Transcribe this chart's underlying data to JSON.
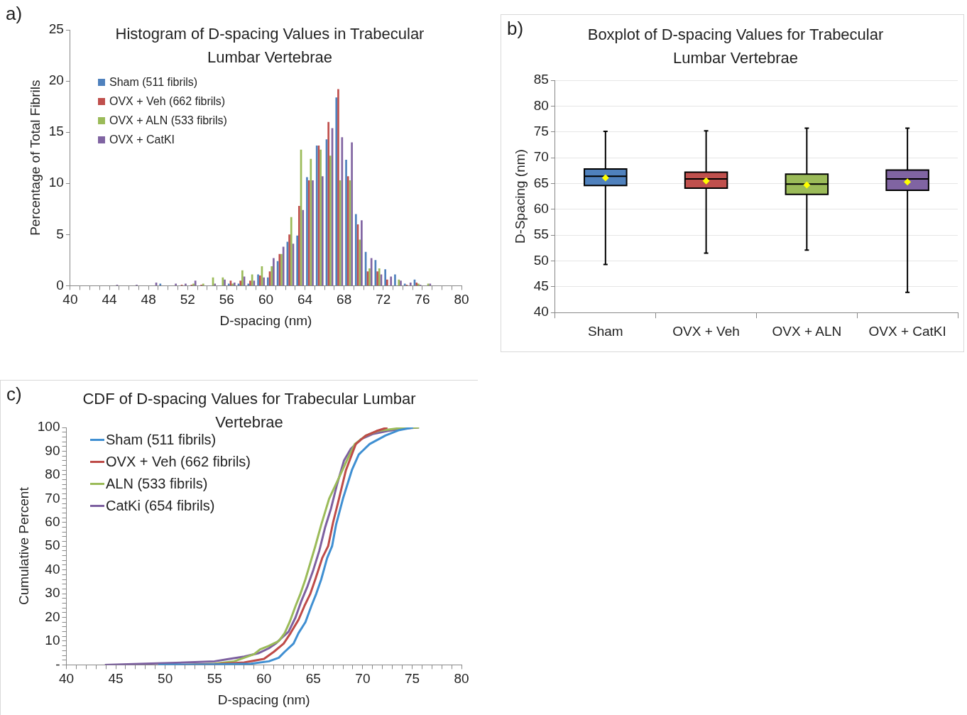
{
  "chart_data": [
    {
      "type": "histogram",
      "title": "Histogram of D-spacing Values in Trabecular Lumbar Vertebrae",
      "xlabel": "D-spacing (nm)",
      "ylabel": "Percentage of Total Fibrils",
      "annotations": [
        "a)"
      ],
      "bins": [
        40,
        41,
        42,
        43,
        44,
        45,
        46,
        47,
        48,
        49,
        50,
        51,
        52,
        53,
        54,
        55,
        56,
        57,
        58,
        59,
        60,
        61,
        62,
        63,
        64,
        65,
        66,
        67,
        68,
        69,
        70,
        71,
        72,
        73,
        74,
        75,
        76,
        77,
        78,
        79,
        80
      ],
      "series": [
        {
          "name": "Sham (511 fibrils)",
          "color": "#4f81bd",
          "values": [
            0,
            0,
            0,
            0,
            0,
            0,
            0,
            0,
            0,
            0.2,
            0,
            0,
            0,
            0,
            0,
            0,
            0.2,
            0.2,
            0.2,
            1.1,
            0.8,
            2.4,
            4.3,
            4.9,
            10.6,
            13.7,
            14.3,
            18.4,
            12.3,
            7.0,
            3.3,
            2.5,
            1.6,
            1.1,
            0.2,
            0.6,
            0,
            0,
            0,
            0
          ]
        },
        {
          "name": "OVX + Veh (662 fibrils)",
          "color": "#c0504d",
          "values": [
            0,
            0,
            0,
            0,
            0,
            0,
            0,
            0,
            0,
            0,
            0,
            0.1,
            0.1,
            0.1,
            0,
            0,
            0.5,
            0.5,
            0.5,
            1.0,
            1.4,
            3.1,
            5.0,
            7.8,
            10.3,
            13.7,
            16.0,
            19.2,
            10.7,
            6.0,
            1.4,
            1.4,
            0.6,
            0,
            0.1,
            0.3,
            0,
            0,
            0,
            0
          ]
        },
        {
          "name": "OVX + ALN (533 fibrils)",
          "color": "#9bbb59",
          "values": [
            0,
            0,
            0,
            0,
            0,
            0,
            0,
            0,
            0,
            0,
            0,
            0,
            0.2,
            0.2,
            0.8,
            0.8,
            0.2,
            1.5,
            1.1,
            1.9,
            1.9,
            3.1,
            6.7,
            13.3,
            12.4,
            13.3,
            12.7,
            10.3,
            10.3,
            4.5,
            1.7,
            1.7,
            0,
            0.6,
            0,
            0.2,
            0.2,
            0,
            0,
            0
          ]
        },
        {
          "name": "OVX + CatKI",
          "color": "#8064a2",
          "values": [
            0,
            0,
            0,
            0,
            0.1,
            0,
            0.1,
            0,
            0.3,
            0,
            0.2,
            0.2,
            0.5,
            0,
            0.2,
            0.6,
            0.3,
            0.9,
            0.5,
            0.8,
            2.7,
            3.8,
            4.1,
            7.4,
            10.3,
            10.7,
            15.4,
            14.5,
            14.0,
            6.4,
            2.7,
            1.1,
            0.9,
            0.5,
            0.3,
            0.1,
            0.2,
            0,
            0,
            0
          ]
        }
      ],
      "xlim": [
        40,
        80
      ],
      "xticks": [
        40,
        {
          "value": 41,
          "label": null
        },
        {
          "value": 42,
          "label": null
        },
        {
          "value": 43,
          "label": null
        },
        44,
        {
          "value": 45,
          "label": null
        },
        {
          "value": 46,
          "label": null
        },
        {
          "value": 47,
          "label": null
        },
        48,
        {
          "value": 49,
          "label": null
        },
        {
          "value": 50,
          "label": null
        },
        {
          "value": 51,
          "label": null
        },
        52,
        {
          "value": 53,
          "label": null
        },
        {
          "value": 54,
          "label": null
        },
        {
          "value": 55,
          "label": null
        },
        56,
        {
          "value": 57,
          "label": null
        },
        {
          "value": 58,
          "label": null
        },
        {
          "value": 59,
          "label": null
        },
        60,
        {
          "value": 61,
          "label": null
        },
        {
          "value": 62,
          "label": null
        },
        {
          "value": 63,
          "label": null
        },
        64,
        {
          "value": 65,
          "label": null
        },
        {
          "value": 66,
          "label": null
        },
        {
          "value": 67,
          "label": null
        },
        68,
        {
          "value": 69,
          "label": null
        },
        {
          "value": 70,
          "label": null
        },
        {
          "value": 71,
          "label": null
        },
        72,
        {
          "value": 73,
          "label": null
        },
        {
          "value": 74,
          "label": null
        },
        {
          "value": 75,
          "label": null
        },
        76,
        {
          "value": 77,
          "label": null
        },
        {
          "value": 78,
          "label": null
        },
        {
          "value": 79,
          "label": null
        },
        80
      ],
      "ylim": [
        0,
        25
      ],
      "yticks": [
        0,
        5,
        10,
        15,
        20,
        25
      ],
      "grid": false,
      "legend": "top left"
    },
    {
      "type": "box",
      "title": "Boxplot of D-spacing Values for Trabecular Lumbar Vertebrae",
      "ylabel": "D-Spacing (nm)",
      "annotations": [
        "b)"
      ],
      "categories": [
        "Sham",
        "OVX + Veh",
        "OVX + ALN",
        "OVX + CatKI"
      ],
      "colors": [
        "#4f81bd",
        "#c0504d",
        "#9bbb59",
        "#8064a2"
      ],
      "boxes": [
        {
          "low": 49.3,
          "q1": 64.6,
          "median": 66.4,
          "q3": 67.8,
          "high": 75.1,
          "mean": 66.1
        },
        {
          "low": 51.5,
          "q1": 64.1,
          "median": 65.9,
          "q3": 67.2,
          "high": 75.2,
          "mean": 65.5
        },
        {
          "low": 52.1,
          "q1": 62.9,
          "median": 64.9,
          "q3": 66.8,
          "high": 75.7,
          "mean": 64.7
        },
        {
          "low": 43.9,
          "q1": 63.7,
          "median": 65.9,
          "q3": 67.6,
          "high": 75.7,
          "mean": 65.3
        }
      ],
      "ylim": [
        40,
        85
      ],
      "yticks": [
        40,
        45,
        50,
        55,
        60,
        65,
        70,
        75,
        80,
        85
      ],
      "grid": "y"
    },
    {
      "type": "line",
      "title": "CDF of D-spacing Values for Trabecular Lumbar Vertebrae",
      "xlabel": "D-spacing (nm)",
      "ylabel": "Cumulative Percent",
      "annotations": [
        "c)"
      ],
      "series": [
        {
          "name": "Sham (511 fibrils)",
          "color": "#3f8fd2",
          "x": [
            49.3,
            55,
            58.7,
            60.5,
            61.5,
            62.1,
            63,
            63.5,
            64.2,
            64.8,
            65.3,
            65.8,
            66.4,
            66.9,
            67.3,
            68,
            68.9,
            69.6,
            70.7,
            72.3,
            73.7,
            75.1
          ],
          "values": [
            0,
            0.2,
            0.5,
            1.5,
            3,
            5.5,
            9,
            13.4,
            18,
            24.8,
            30,
            36,
            45,
            50,
            59,
            70,
            82,
            88.6,
            93,
            96.6,
            98.9,
            100
          ]
        },
        {
          "name": "OVX + Veh (662 fibrils)",
          "color": "#be4b48",
          "x": [
            51.5,
            55,
            58,
            60,
            61,
            62,
            62.7,
            63.5,
            64.1,
            64.7,
            65.2,
            65.9,
            66.5,
            67,
            67.6,
            68.3,
            69.3,
            70.3,
            71.4,
            72.5
          ],
          "values": [
            0,
            0.3,
            1,
            2.5,
            5.5,
            9,
            13.4,
            19,
            24.8,
            30,
            36,
            45,
            50,
            60,
            70,
            82,
            93,
            96.5,
            98.5,
            100
          ]
        },
        {
          "name": "ALN (533 fibrils)",
          "color": "#9bbb59",
          "x": [
            52.1,
            55,
            57,
            58,
            59,
            59.6,
            60.5,
            61.5,
            62.1,
            62.6,
            63.2,
            63.7,
            64.2,
            64.7,
            65.2,
            65.8,
            66.6,
            67.5,
            68.5,
            69.2,
            70.3,
            71.5,
            73.7,
            75.7
          ],
          "values": [
            0,
            0.5,
            1.5,
            3,
            4.5,
            6.5,
            8,
            10,
            13.4,
            18,
            24.8,
            30,
            36,
            43,
            50,
            59,
            70,
            78,
            87,
            93,
            96.5,
            98.5,
            99.7,
            100
          ]
        },
        {
          "name": "CatKi (654 fibrils)",
          "color": "#7d60a0",
          "x": [
            43.9,
            48,
            52,
            55,
            56.5,
            58,
            59.5,
            60.5,
            61.2,
            61.7,
            62.5,
            63.2,
            63.8,
            64.4,
            65,
            65.6,
            66.2,
            66.8,
            67.4,
            68.1,
            68.8,
            69.8,
            71,
            72.5,
            74,
            75.7
          ],
          "values": [
            0,
            0.5,
            1,
            1.5,
            2.5,
            3.5,
            5,
            7,
            9,
            11,
            14,
            20,
            27,
            33,
            40,
            48,
            58,
            66,
            76,
            86,
            91,
            95,
            97.2,
            98.5,
            99.5,
            100
          ]
        }
      ],
      "xlim": [
        40,
        80
      ],
      "xticks": [
        40,
        {
          "value": 41,
          "label": null
        },
        {
          "value": 42,
          "label": null
        },
        {
          "value": 43,
          "label": null
        },
        {
          "value": 44,
          "label": null
        },
        45,
        {
          "value": 46,
          "label": null
        },
        {
          "value": 47,
          "label": null
        },
        {
          "value": 48,
          "label": null
        },
        {
          "value": 49,
          "label": null
        },
        50,
        {
          "value": 51,
          "label": null
        },
        {
          "value": 52,
          "label": null
        },
        {
          "value": 53,
          "label": null
        },
        {
          "value": 54,
          "label": null
        },
        55,
        {
          "value": 56,
          "label": null
        },
        {
          "value": 57,
          "label": null
        },
        {
          "value": 58,
          "label": null
        },
        {
          "value": 59,
          "label": null
        },
        60,
        {
          "value": 61,
          "label": null
        },
        {
          "value": 62,
          "label": null
        },
        {
          "value": 63,
          "label": null
        },
        {
          "value": 64,
          "label": null
        },
        65,
        {
          "value": 66,
          "label": null
        },
        {
          "value": 67,
          "label": null
        },
        {
          "value": 68,
          "label": null
        },
        {
          "value": 69,
          "label": null
        },
        70,
        {
          "value": 71,
          "label": null
        },
        {
          "value": 72,
          "label": null
        },
        {
          "value": 73,
          "label": null
        },
        {
          "value": 74,
          "label": null
        },
        75,
        {
          "value": 76,
          "label": null
        },
        {
          "value": 77,
          "label": null
        },
        {
          "value": 78,
          "label": null
        },
        {
          "value": 79,
          "label": null
        },
        80
      ],
      "ylim": [
        0,
        100
      ],
      "yticks": [
        {
          "value": 0,
          "label": "-"
        },
        {
          "value": 2,
          "label": null
        },
        {
          "value": 4,
          "label": null
        },
        {
          "value": 6,
          "label": null
        },
        {
          "value": 8,
          "label": null
        },
        10,
        {
          "value": 12,
          "label": null
        },
        {
          "value": 14,
          "label": null
        },
        {
          "value": 16,
          "label": null
        },
        {
          "value": 18,
          "label": null
        },
        20,
        {
          "value": 22,
          "label": null
        },
        {
          "value": 24,
          "label": null
        },
        {
          "value": 26,
          "label": null
        },
        {
          "value": 28,
          "label": null
        },
        30,
        {
          "value": 32,
          "label": null
        },
        {
          "value": 34,
          "label": null
        },
        {
          "value": 36,
          "label": null
        },
        {
          "value": 38,
          "label": null
        },
        40,
        {
          "value": 42,
          "label": null
        },
        {
          "value": 44,
          "label": null
        },
        {
          "value": 46,
          "label": null
        },
        {
          "value": 48,
          "label": null
        },
        50,
        {
          "value": 52,
          "label": null
        },
        {
          "value": 54,
          "label": null
        },
        {
          "value": 56,
          "label": null
        },
        {
          "value": 58,
          "label": null
        },
        60,
        {
          "value": 62,
          "label": null
        },
        {
          "value": 64,
          "label": null
        },
        {
          "value": 66,
          "label": null
        },
        {
          "value": 68,
          "label": null
        },
        70,
        {
          "value": 72,
          "label": null
        },
        {
          "value": 74,
          "label": null
        },
        {
          "value": 76,
          "label": null
        },
        {
          "value": 78,
          "label": null
        },
        80,
        {
          "value": 82,
          "label": null
        },
        {
          "value": 84,
          "label": null
        },
        {
          "value": 86,
          "label": null
        },
        {
          "value": 88,
          "label": null
        },
        90,
        {
          "value": 92,
          "label": null
        },
        {
          "value": 94,
          "label": null
        },
        {
          "value": 96,
          "label": null
        },
        {
          "value": 98,
          "label": null
        },
        100
      ],
      "grid": false,
      "legend": "top left",
      "marker": "none",
      "line_style": "solid"
    }
  ]
}
